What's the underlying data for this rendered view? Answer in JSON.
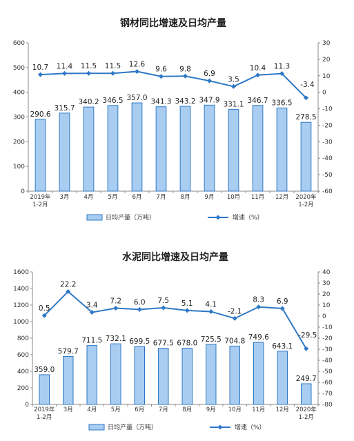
{
  "chart_data": [
    {
      "type": "bar",
      "title": "钢材同比增速及日均产量",
      "categories": [
        [
          "2019年",
          "1-2月"
        ],
        [
          "3月"
        ],
        [
          "4月"
        ],
        [
          "5月"
        ],
        [
          "6月"
        ],
        [
          "7月"
        ],
        [
          "8月"
        ],
        [
          "9月"
        ],
        [
          "10月"
        ],
        [
          "11月"
        ],
        [
          "12月"
        ],
        [
          "2020年",
          "1-2月"
        ]
      ],
      "ylim": [
        0,
        600
      ],
      "yticks": [
        0,
        100,
        200,
        300,
        400,
        500,
        600
      ],
      "y2lim": [
        -60,
        30
      ],
      "y2ticks": [
        -60,
        -50,
        -40,
        -30,
        -20,
        -10,
        0,
        10,
        20,
        30
      ],
      "series": [
        {
          "name": "日均产量（万吨）",
          "type": "bar",
          "axis": "left",
          "values": [
            290.6,
            315.7,
            340.2,
            346.5,
            357.0,
            341.3,
            343.2,
            347.9,
            331.1,
            346.7,
            336.5,
            278.5
          ],
          "labels": [
            "290.6",
            "315.7",
            "340.2",
            "346.5",
            "357.0",
            "341.3",
            "343.2",
            "347.9",
            "331.1",
            "346.7",
            "336.5",
            "278.5"
          ]
        },
        {
          "name": "增速（%）",
          "type": "line",
          "axis": "right",
          "values": [
            10.7,
            11.4,
            11.5,
            11.5,
            12.6,
            9.6,
            9.8,
            6.9,
            3.5,
            10.4,
            11.3,
            -3.4
          ],
          "labels": [
            "10.7",
            "11.4",
            "11.5",
            "11.5",
            "12.6",
            "9.6",
            "9.8",
            "6.9",
            "3.5",
            "10.4",
            "11.3",
            "-3.4"
          ]
        }
      ],
      "legend": "bottom"
    },
    {
      "type": "bar",
      "title": "水泥同比增速及日均产量",
      "categories": [
        [
          "2019年",
          "1-2月"
        ],
        [
          "3月"
        ],
        [
          "4月"
        ],
        [
          "5月"
        ],
        [
          "6月"
        ],
        [
          "7月"
        ],
        [
          "8月"
        ],
        [
          "9月"
        ],
        [
          "10月"
        ],
        [
          "11月"
        ],
        [
          "12月"
        ],
        [
          "2020年",
          "1-2月"
        ]
      ],
      "ylim": [
        0,
        1600
      ],
      "yticks": [
        0,
        200,
        400,
        600,
        800,
        1000,
        1200,
        1400,
        1600
      ],
      "y2lim": [
        -80,
        40
      ],
      "y2ticks": [
        -80,
        -70,
        -60,
        -50,
        -40,
        -30,
        -20,
        -10,
        0,
        10,
        20,
        30,
        40
      ],
      "series": [
        {
          "name": "日均产量（万吨）",
          "type": "bar",
          "axis": "left",
          "values": [
            359.0,
            579.7,
            711.5,
            732.1,
            699.5,
            677.5,
            678.0,
            725.5,
            704.8,
            749.6,
            643.1,
            249.7
          ],
          "labels": [
            "359.0",
            "579.7",
            "711.5",
            "732.1",
            "699.5",
            "677.5",
            "678.0",
            "725.5",
            "704.8",
            "749.6",
            "643.1",
            "249.7"
          ]
        },
        {
          "name": "增速（%）",
          "type": "line",
          "axis": "right",
          "values": [
            0.5,
            22.2,
            3.4,
            7.2,
            6.0,
            7.5,
            5.1,
            4.1,
            -2.1,
            8.3,
            6.9,
            -29.5
          ],
          "labels": [
            "0.5",
            "22.2",
            "3.4",
            "7.2",
            "6.0",
            "7.5",
            "5.1",
            "4.1",
            "-2.1",
            "8.3",
            "6.9",
            "-29.5"
          ]
        }
      ],
      "legend": "bottom"
    }
  ],
  "colors": {
    "bar_fill": "#a9cdf0",
    "bar_stroke": "#2e78c6",
    "line": "#2e78c6",
    "axis": "#888888"
  }
}
